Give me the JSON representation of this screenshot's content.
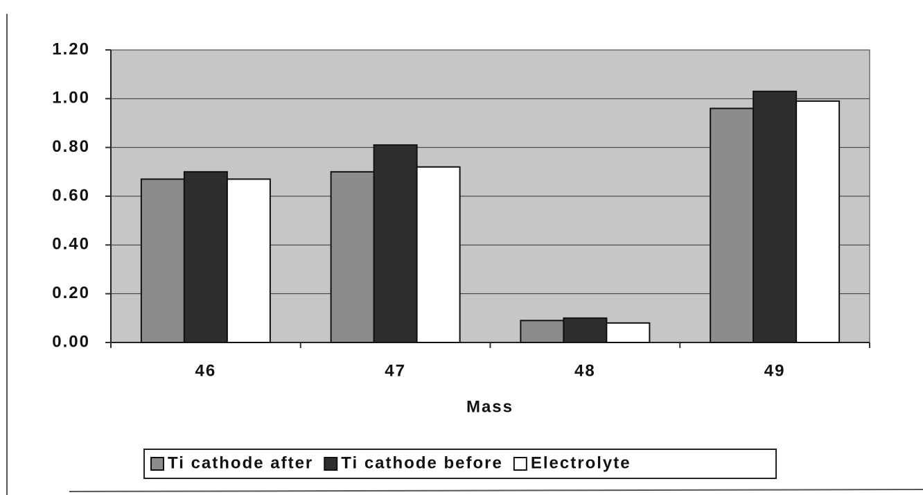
{
  "chart_data": {
    "type": "bar",
    "x_label": "Mass",
    "categories": [
      "46",
      "47",
      "48",
      "49"
    ],
    "series": [
      {
        "name": "Ti cathode after",
        "color": "#8c8c8c",
        "values": [
          0.67,
          0.7,
          0.09,
          0.96
        ]
      },
      {
        "name": "Ti cathode before",
        "color": "#2e2e2e",
        "values": [
          0.7,
          0.81,
          0.1,
          1.03
        ]
      },
      {
        "name": "Electrolyte",
        "color": "#ffffff",
        "values": [
          0.67,
          0.72,
          0.08,
          0.99
        ]
      }
    ],
    "ylim": [
      0,
      1.2
    ],
    "yticks": [
      {
        "value": 0,
        "label": "0.00"
      },
      {
        "value": 0.2,
        "label": "0.20"
      },
      {
        "value": 0.4,
        "label": "0.40"
      },
      {
        "value": 0.6,
        "label": "0.60"
      },
      {
        "value": 0.8,
        "label": "0.80"
      },
      {
        "value": 1,
        "label": "1.00"
      },
      {
        "value": 1.2,
        "label": "1.20"
      }
    ],
    "grid": true,
    "legend": "bottom"
  }
}
